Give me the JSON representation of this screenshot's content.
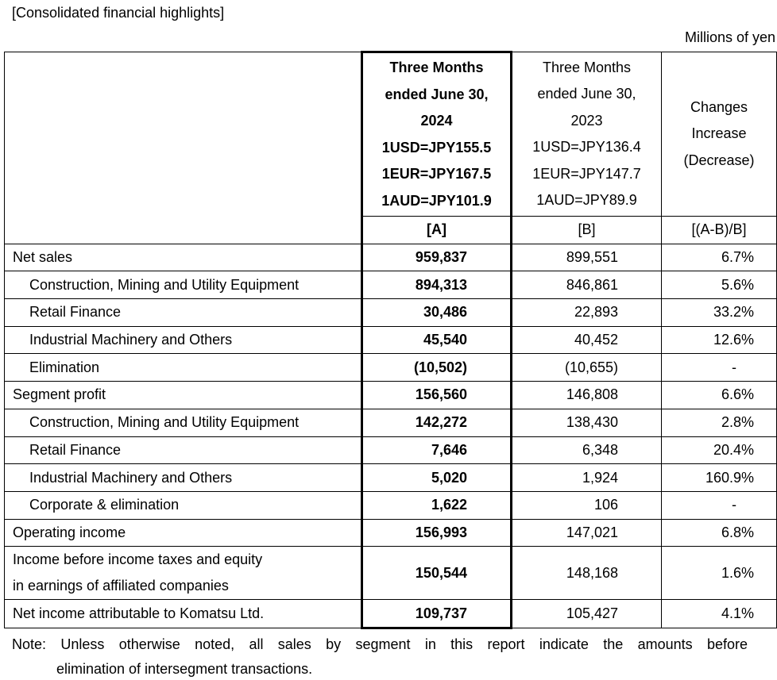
{
  "title": "[Consolidated financial highlights]",
  "unit": "Millions of yen",
  "header": {
    "col_a": {
      "lines": [
        "Three Months",
        "ended June 30,",
        "2024",
        "1USD=JPY155.5",
        "1EUR=JPY167.5",
        "1AUD=JPY101.9"
      ],
      "label": "[A]"
    },
    "col_b": {
      "lines": [
        "Three Months",
        "ended June 30,",
        "2023",
        "1USD=JPY136.4",
        "1EUR=JPY147.7",
        "1AUD=JPY89.9"
      ],
      "label": "[B]"
    },
    "col_c": {
      "lines": [
        "Changes",
        "Increase",
        "(Decrease)"
      ],
      "label": "[(A-B)/B]"
    }
  },
  "sections": [
    {
      "name": [
        "Net sales"
      ],
      "a": "959,837",
      "b": "899,551",
      "c": "6.7%",
      "items": [
        {
          "name": "Construction, Mining and Utility Equipment",
          "a": "894,313",
          "b": "846,861",
          "c": "5.6%"
        },
        {
          "name": "Retail Finance",
          "a": "30,486",
          "b": "22,893",
          "c": "33.2%"
        },
        {
          "name": "Industrial Machinery and Others",
          "a": "45,540",
          "b": "40,452",
          "c": "12.6%"
        },
        {
          "name": "Elimination",
          "a": "(10,502)",
          "b": "(10,655)",
          "c": "-"
        }
      ]
    },
    {
      "name": [
        "Segment profit"
      ],
      "a": "156,560",
      "b": "146,808",
      "c": "6.6%",
      "items": [
        {
          "name": "Construction, Mining and Utility Equipment",
          "a": "142,272",
          "b": "138,430",
          "c": "2.8%"
        },
        {
          "name": "Retail Finance",
          "a": "7,646",
          "b": "6,348",
          "c": "20.4%"
        },
        {
          "name": "Industrial Machinery and Others",
          "a": "5,020",
          "b": "1,924",
          "c": "160.9%"
        },
        {
          "name": "Corporate & elimination",
          "a": "1,622",
          "b": "106",
          "c": "-"
        }
      ]
    },
    {
      "name": [
        "Operating income"
      ],
      "a": "156,993",
      "b": "147,021",
      "c": "6.8%",
      "items": []
    },
    {
      "name": [
        "Income before income taxes and equity",
        "in earnings of affiliated companies"
      ],
      "a": "150,544",
      "b": "148,168",
      "c": "1.6%",
      "items": []
    },
    {
      "name": [
        "Net income attributable to Komatsu Ltd."
      ],
      "a": "109,737",
      "b": "105,427",
      "c": "4.1%",
      "items": []
    }
  ],
  "note": {
    "label": "Note:",
    "lines": [
      "Unless otherwise noted, all sales by segment in this report indicate the amounts before",
      "elimination of intersegment transactions."
    ]
  }
}
